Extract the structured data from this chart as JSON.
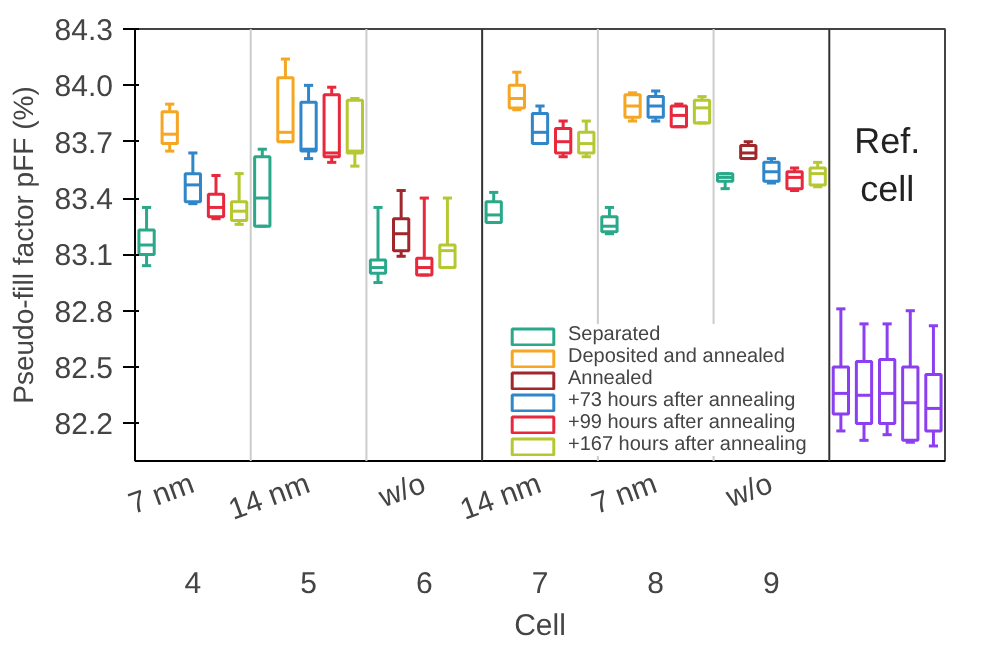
{
  "chart_data": {
    "type": "box",
    "ylabel": "Pseudo-fill factor pFF (%)",
    "xlabel": "Cell",
    "categories": [
      "7 nm",
      "14 nm",
      "w/o",
      "14 nm",
      "7 nm",
      "w/o",
      null
    ],
    "annotations": [
      "4",
      "5",
      "6",
      "7",
      "8",
      "9",
      "Ref. cell"
    ],
    "ylim": [
      82.0,
      84.3
    ],
    "yticks": [
      82.2,
      82.5,
      82.8,
      83.1,
      83.4,
      83.7,
      {
        "value": 84.0,
        "label": "84.0"
      },
      84.3
    ],
    "grid": "x",
    "legend": "bottom",
    "series": [
      {
        "name": "Separated",
        "color": "#2aa88a",
        "boxes": [
          {
            "low": 83.04,
            "q1": 83.1,
            "median": 83.15,
            "q3": 83.23,
            "high": 83.35
          },
          {
            "low": 83.25,
            "q1": 83.25,
            "median": 83.4,
            "q3": 83.62,
            "high": 83.66
          },
          {
            "low": 82.95,
            "q1": 83.0,
            "median": 83.03,
            "q3": 83.07,
            "high": 83.35
          },
          {
            "low": 83.27,
            "q1": 83.27,
            "median": 83.31,
            "q3": 83.38,
            "high": 83.43
          },
          {
            "low": 83.21,
            "q1": 83.22,
            "median": 83.25,
            "q3": 83.3,
            "high": 83.35
          },
          {
            "low": 83.45,
            "q1": 83.49,
            "median": 83.51,
            "q3": 83.53,
            "high": 83.53
          },
          null
        ]
      },
      {
        "name": "Deposited and annealed",
        "color": "#f5a623",
        "boxes": [
          {
            "low": 83.65,
            "q1": 83.69,
            "median": 83.74,
            "q3": 83.86,
            "high": 83.9
          },
          {
            "low": 83.7,
            "q1": 83.7,
            "median": 83.75,
            "q3": 84.04,
            "high": 84.14
          },
          null,
          {
            "low": 83.87,
            "q1": 83.88,
            "median": 83.93,
            "q3": 84.0,
            "high": 84.07
          },
          {
            "low": 83.81,
            "q1": 83.83,
            "median": 83.89,
            "q3": 83.95,
            "high": 83.96
          },
          null,
          null
        ]
      },
      {
        "name": "Annealed",
        "color": "#a0282c",
        "boxes": [
          null,
          null,
          {
            "low": 83.09,
            "q1": 83.12,
            "median": 83.21,
            "q3": 83.29,
            "high": 83.44
          },
          null,
          null,
          {
            "low": 83.61,
            "q1": 83.61,
            "median": 83.64,
            "q3": 83.68,
            "high": 83.7
          },
          null
        ]
      },
      {
        "name": "+73 hours after annealing",
        "color": "#2f86c8",
        "boxes": [
          {
            "low": 83.37,
            "q1": 83.38,
            "median": 83.47,
            "q3": 83.53,
            "high": 83.64
          },
          {
            "low": 83.61,
            "q1": 83.65,
            "median": 83.66,
            "q3": 83.91,
            "high": 84.0
          },
          null,
          {
            "low": 83.69,
            "q1": 83.69,
            "median": 83.75,
            "q3": 83.85,
            "high": 83.89
          },
          {
            "low": 83.81,
            "q1": 83.83,
            "median": 83.89,
            "q3": 83.94,
            "high": 83.97
          },
          {
            "low": 83.48,
            "q1": 83.49,
            "median": 83.54,
            "q3": 83.59,
            "high": 83.61
          },
          null
        ]
      },
      {
        "name": "+99 hours after annealing",
        "color": "#e8283c",
        "boxes": [
          {
            "low": 83.29,
            "q1": 83.3,
            "median": 83.35,
            "q3": 83.42,
            "high": 83.52
          },
          {
            "low": 83.59,
            "q1": 83.62,
            "median": 83.64,
            "q3": 83.95,
            "high": 83.99
          },
          {
            "low": 82.99,
            "q1": 82.99,
            "median": 83.03,
            "q3": 83.08,
            "high": 83.4
          },
          {
            "low": 83.62,
            "q1": 83.64,
            "median": 83.7,
            "q3": 83.77,
            "high": 83.81
          },
          {
            "low": 83.78,
            "q1": 83.78,
            "median": 83.84,
            "q3": 83.89,
            "high": 83.9
          },
          {
            "low": 83.44,
            "q1": 83.45,
            "median": 83.51,
            "q3": 83.54,
            "high": 83.56
          },
          null
        ]
      },
      {
        "name": "+167 hours after annealing",
        "color": "#b5c832",
        "boxes": [
          {
            "low": 83.26,
            "q1": 83.28,
            "median": 83.33,
            "q3": 83.38,
            "high": 83.53
          },
          {
            "low": 83.57,
            "q1": 83.64,
            "median": 83.65,
            "q3": 83.92,
            "high": 83.93
          },
          {
            "low": 83.03,
            "q1": 83.03,
            "median": 83.12,
            "q3": 83.15,
            "high": 83.4
          },
          {
            "low": 83.62,
            "q1": 83.64,
            "median": 83.69,
            "q3": 83.75,
            "high": 83.81
          },
          {
            "low": 83.8,
            "q1": 83.8,
            "median": 83.88,
            "q3": 83.92,
            "high": 83.94
          },
          {
            "low": 83.46,
            "q1": 83.47,
            "median": 83.53,
            "q3": 83.56,
            "high": 83.59
          },
          null
        ]
      },
      {
        "color": "#8b3ff0",
        "boxes": [
          null,
          null,
          null,
          null,
          null,
          null,
          {
            "low": 82.16,
            "q1": 82.25,
            "median": 82.36,
            "q3": 82.5,
            "high": 82.81
          }
        ]
      },
      {
        "color": "#8b3ff0",
        "boxes": [
          null,
          null,
          null,
          null,
          null,
          null,
          {
            "low": 82.11,
            "q1": 82.2,
            "median": 82.35,
            "q3": 82.53,
            "high": 82.73
          }
        ]
      },
      {
        "color": "#8b3ff0",
        "boxes": [
          null,
          null,
          null,
          null,
          null,
          null,
          {
            "low": 82.14,
            "q1": 82.2,
            "median": 82.36,
            "q3": 82.54,
            "high": 82.73
          }
        ]
      },
      {
        "color": "#8b3ff0",
        "boxes": [
          null,
          null,
          null,
          null,
          null,
          null,
          {
            "low": 82.1,
            "q1": 82.11,
            "median": 82.31,
            "q3": 82.5,
            "high": 82.8
          }
        ]
      },
      {
        "color": "#8b3ff0",
        "boxes": [
          null,
          null,
          null,
          null,
          null,
          null,
          {
            "low": 82.08,
            "q1": 82.16,
            "median": 82.28,
            "q3": 82.46,
            "high": 82.72
          }
        ]
      }
    ]
  }
}
